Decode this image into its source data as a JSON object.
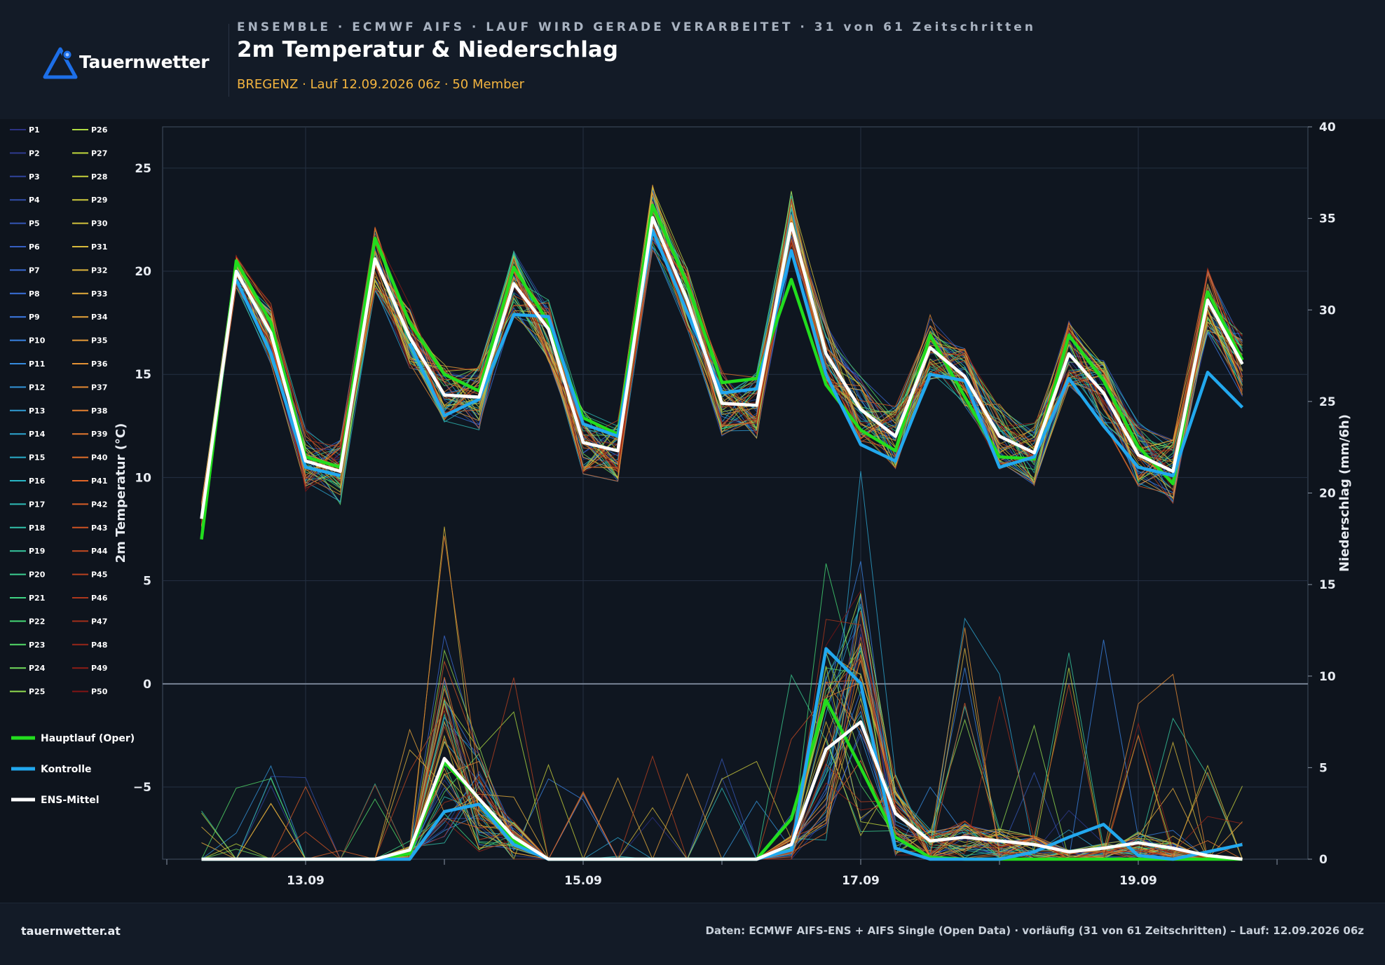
{
  "header": {
    "brand": "Tauernwetter",
    "kicker": "ENSEMBLE · ECMWF AIFS · LAUF WIRD GERADE VERARBEITET · 31 von 61 Zeitschritten",
    "title": "2m Temperatur & Niederschlag",
    "subtitle": "BREGENZ · Lauf 12.09.2026 06z · 50 Member"
  },
  "footer": {
    "site": "tauernwetter.at",
    "source": "Daten: ECMWF AIFS-ENS + AIFS Single (Open Data) · vorläufig (31 von 61 Zeitschritten) – Lauf: 12.09.2026 06z"
  },
  "colors": {
    "oper": "#22dd1e",
    "control": "#22a8ee",
    "mean": "#ffffff",
    "accent": "#f3b43f",
    "brand": "#1d6fe8",
    "background": "#0e141d"
  },
  "chart_data": {
    "type": "line",
    "title": "2m Temperatur & Niederschlag",
    "location": "BREGENZ",
    "ylabel": "2m Temperatur (°C)",
    "y2label": "Niederschlag (mm/6h)",
    "ylim": [
      -8.5,
      27
    ],
    "y2lim": [
      0,
      40
    ],
    "yticks": [
      -5,
      0,
      5,
      10,
      15,
      20,
      25
    ],
    "y2ticks": [
      0,
      5,
      10,
      15,
      20,
      25,
      30,
      35,
      40
    ],
    "xticks": [
      "13.09",
      "15.09",
      "17.09",
      "19.09"
    ],
    "x_days": [
      0.25,
      0.5,
      0.75,
      1.0,
      1.25,
      1.5,
      1.75,
      2.0,
      2.25,
      2.5,
      2.75,
      3.0,
      3.25,
      3.5,
      3.75,
      4.0,
      4.25,
      4.5,
      4.75,
      5.0,
      5.25,
      5.5,
      5.75,
      6.0,
      6.25,
      6.5,
      6.75,
      7.0,
      7.25,
      7.5,
      7.75
    ],
    "x_days_note": "Tage ab 12.09.2026 00z (13.09 = 1, 15.09 = 3, 17.09 = 5, 19.09 = 7)",
    "zero_line": 0,
    "grid": true,
    "legend_position": "left",
    "member_count": 50,
    "member_labels": [
      "P1",
      "P2",
      "P3",
      "P4",
      "P5",
      "P6",
      "P7",
      "P8",
      "P9",
      "P10",
      "P11",
      "P12",
      "P13",
      "P14",
      "P15",
      "P16",
      "P17",
      "P18",
      "P19",
      "P20",
      "P21",
      "P22",
      "P23",
      "P24",
      "P25",
      "P26",
      "P27",
      "P28",
      "P29",
      "P30",
      "P31",
      "P32",
      "P33",
      "P34",
      "P35",
      "P36",
      "P37",
      "P38",
      "P39",
      "P40",
      "P41",
      "P42",
      "P43",
      "P44",
      "P45",
      "P46",
      "P47",
      "P48",
      "P49",
      "P50"
    ],
    "highlight_series": [
      {
        "name": "Hauptlauf (Oper)",
        "color": "#22dd1e",
        "temperature": [
          7.0,
          20.5,
          17.5,
          11.0,
          10.5,
          21.6,
          17.5,
          15.0,
          14.2,
          20.2,
          17.5,
          12.9,
          12.1,
          23.2,
          19.4,
          14.6,
          14.8,
          19.6,
          14.5,
          12.3,
          11.3,
          16.9,
          13.9,
          11.0,
          10.9,
          16.9,
          14.7,
          11.5,
          9.7,
          19.0,
          15.7
        ],
        "precipitation": [
          0,
          0,
          0,
          0,
          0,
          0,
          0.3,
          5.3,
          3.3,
          1.0,
          0,
          0,
          0,
          0,
          0,
          0,
          0,
          2.2,
          8.7,
          5.0,
          1.2,
          0.1,
          0,
          0,
          0,
          0,
          0,
          0,
          0,
          0,
          0
        ]
      },
      {
        "name": "Kontrolle",
        "color": "#22a8ee",
        "temperature": [
          null,
          19.6,
          16.0,
          10.5,
          10.1,
          null,
          16.5,
          13.0,
          13.8,
          17.9,
          17.8,
          12.6,
          12.0,
          22.0,
          18.0,
          14.1,
          14.3,
          21.0,
          15.0,
          11.6,
          10.8,
          15.0,
          14.7,
          10.5,
          11.0,
          14.8,
          12.5,
          10.5,
          10.1,
          15.1,
          13.4
        ],
        "precipitation": [
          0,
          0,
          0,
          0,
          0,
          0,
          0,
          2.6,
          3.0,
          0.8,
          0,
          0,
          0,
          0,
          0,
          0,
          0,
          0.5,
          11.5,
          9.6,
          0.6,
          0,
          0,
          0,
          0.4,
          1.2,
          1.9,
          0.2,
          0,
          0.4,
          0.8
        ]
      },
      {
        "name": "ENS-Mittel",
        "color": "#ffffff",
        "temperature": [
          8.0,
          20.0,
          17.0,
          10.8,
          10.3,
          20.6,
          16.8,
          14.0,
          13.9,
          19.4,
          17.2,
          11.7,
          11.3,
          22.6,
          18.6,
          13.6,
          13.5,
          22.3,
          16.0,
          13.3,
          12.0,
          16.3,
          14.9,
          12.0,
          11.2,
          16.0,
          14.1,
          11.1,
          10.3,
          18.6,
          15.5
        ],
        "precipitation": [
          0,
          0,
          0,
          0,
          0,
          0,
          0.5,
          5.5,
          3.3,
          1.2,
          0,
          0,
          0,
          0,
          0,
          0,
          0,
          0.8,
          6.0,
          7.5,
          2.5,
          1.0,
          1.2,
          1.0,
          0.8,
          0.4,
          0.6,
          0.9,
          0.6,
          0.2,
          0
        ]
      }
    ]
  }
}
